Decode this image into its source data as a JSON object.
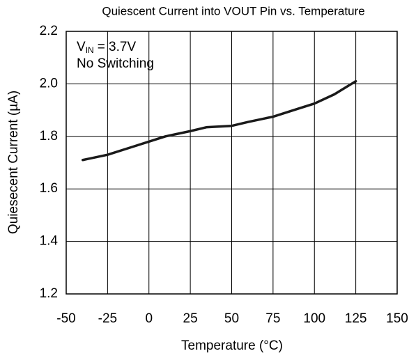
{
  "chart_data": {
    "type": "line",
    "title": "Quiescent Current into VOUT Pin vs. Temperature",
    "x_label": "Temperature (°C)",
    "y_label": "Quiesecent Current (µA)",
    "annotation": {
      "symbol": "V",
      "subscript": "IN",
      "text": "= 3.7V"
    },
    "note": "No Switching",
    "x": [
      -40,
      -25,
      -10,
      0,
      10,
      25,
      35,
      50,
      60,
      75,
      90,
      100,
      112,
      125
    ],
    "series": [
      {
        "name": "Quiescent Current",
        "color": "#1a1a1a",
        "values": [
          1.71,
          1.73,
          1.76,
          1.78,
          1.8,
          1.82,
          1.835,
          1.84,
          1.855,
          1.875,
          1.905,
          1.925,
          1.96,
          2.01
        ]
      }
    ],
    "xlim": [
      -50,
      150
    ],
    "xticks": [
      -50,
      -25,
      0,
      25,
      50,
      75,
      100,
      125,
      150
    ],
    "ylim": [
      1.2,
      2.2
    ],
    "yticks": [
      1.2,
      1.4,
      1.6,
      1.8,
      {
        "value": 2,
        "label": "2.0"
      },
      2.2
    ],
    "grid": true
  }
}
